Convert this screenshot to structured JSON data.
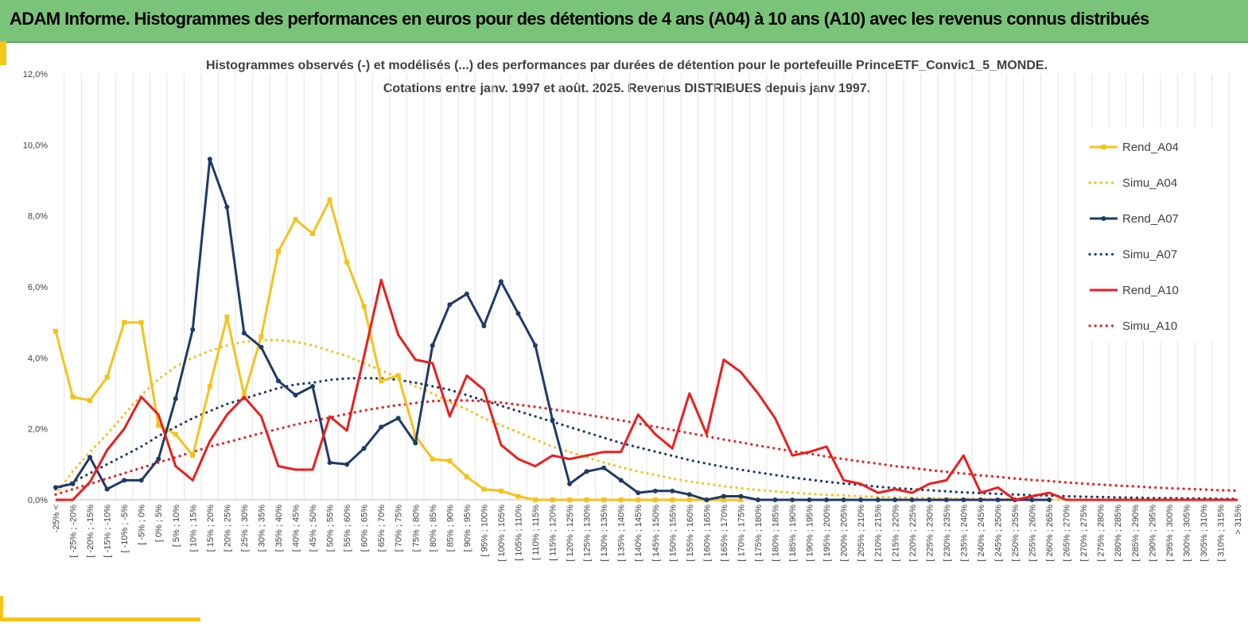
{
  "banner": {
    "title": "ADAM Informe. Histogrammes des performances en euros pour des détentions de 4 ans (A04) à 10 ans (A10) avec les revenus connus distribués"
  },
  "colors": {
    "banner_bg": "#7ac47a",
    "accent": "#f5c518",
    "A04": "#f7c11a",
    "A07": "#1f3a68",
    "A10": "#ee1d1d"
  },
  "chart_data": {
    "type": "line",
    "title_lines": [
      "Histogrammes observés (-) et modélisés (...) des performances par durées de détention pour le portefeuille PrinceETF_Convic1_5_MONDE.",
      "Cotations entre janv. 1997 et août. 2025. Revenus DISTRIBUES depuis janv 1997."
    ],
    "ylim": [
      0,
      12
    ],
    "yticks": [
      "0,0%",
      "2,0%",
      "4,0%",
      "6,0%",
      "8,0%",
      "10,0%",
      "12,0%"
    ],
    "grid": "vertical",
    "legend_position": "right",
    "categories": [
      "-25% <",
      "[ -25% ; -20%",
      "[ -20% ; -15%",
      "[ -15% ; -10%",
      "[ -10% ; -5%",
      "[ -5% ; 0%",
      "[ 0% ; 5%",
      "[ 5% ; 10%",
      "[ 10% ; 15%",
      "[ 15% ; 20%",
      "[ 20% ; 25%",
      "[ 25% ; 30%",
      "[ 30% ; 35%",
      "[ 35% ; 40%",
      "[ 40% ; 45%",
      "[ 45% ; 50%",
      "[ 50% ; 55%",
      "[ 55% ; 60%",
      "[ 60% ; 65%",
      "[ 65% ; 70%",
      "[ 70% ; 75%",
      "[ 75% ; 80%",
      "[ 80% ; 85%",
      "[ 85% ; 90%",
      "[ 90% ; 95%",
      "[ 95% ; 100%",
      "[ 100% ; 105%",
      "[ 105% ; 110%",
      "[ 110% ; 115%",
      "[ 115% ; 120%",
      "[ 120% ; 125%",
      "[ 125% ; 130%",
      "[ 130% ; 135%",
      "[ 135% ; 140%",
      "[ 140% ; 145%",
      "[ 145% ; 150%",
      "[ 150% ; 155%",
      "[ 155% ; 160%",
      "[ 160% ; 165%",
      "[ 165% ; 170%",
      "[ 170% ; 175%",
      "[ 175% ; 180%",
      "[ 180% ; 185%",
      "[ 185% ; 190%",
      "[ 190% ; 195%",
      "[ 195% ; 200%",
      "[ 200% ; 205%",
      "[ 205% ; 210%",
      "[ 210% ; 215%",
      "[ 215% ; 220%",
      "[ 220% ; 225%",
      "[ 225% ; 230%",
      "[ 230% ; 235%",
      "[ 235% ; 240%",
      "[ 240% ; 245%",
      "[ 245% ; 250%",
      "[ 250% ; 255%",
      "[ 255% ; 260%",
      "[ 260% ; 265%",
      "[ 265% ; 270%",
      "[ 270% ; 275%",
      "[ 275% ; 280%",
      "[ 280% ; 285%",
      "[ 285% ; 290%",
      "[ 290% ; 295%",
      "[ 295% ; 300%",
      "[ 300% ; 305%",
      "[ 305% ; 310%",
      "[ 310% ; 315%",
      "> 315%"
    ],
    "series": [
      {
        "name": "Rend_A04",
        "style": "solid",
        "markers": "square",
        "color": "#f7c11a",
        "values": [
          4.75,
          2.9,
          2.8,
          3.45,
          5.0,
          5.0,
          2.1,
          1.85,
          1.25,
          3.2,
          5.15,
          2.95,
          4.6,
          7.0,
          7.9,
          7.5,
          8.45,
          6.7,
          5.45,
          3.35,
          3.5,
          1.8,
          1.15,
          1.1,
          0.65,
          0.3,
          0.25,
          0.1,
          0.0,
          0.0,
          0.0,
          0.0,
          0.0,
          0.0,
          0.0,
          0.0,
          0.0,
          0.0,
          0.0,
          0.0,
          0.0,
          null,
          null,
          null,
          null,
          null,
          null,
          null,
          null,
          null,
          null,
          null,
          null,
          null,
          null,
          null,
          null,
          null,
          null,
          null,
          null,
          null,
          null,
          null,
          null,
          null,
          null,
          null,
          null,
          null
        ]
      },
      {
        "name": "Simu_A04",
        "style": "dotted",
        "color": "#f7c11a",
        "values": [
          0.15,
          0.8,
          1.35,
          1.85,
          2.4,
          2.95,
          3.4,
          3.75,
          4.0,
          4.2,
          4.35,
          4.45,
          4.5,
          4.5,
          4.45,
          4.35,
          4.2,
          4.05,
          3.85,
          3.65,
          3.45,
          3.2,
          3.0,
          2.75,
          2.55,
          2.3,
          2.1,
          1.9,
          1.7,
          1.5,
          1.35,
          1.2,
          1.05,
          0.92,
          0.8,
          0.7,
          0.6,
          0.52,
          0.45,
          0.38,
          0.33,
          0.28,
          0.24,
          0.2,
          0.17,
          0.14,
          0.12,
          0.1,
          0.08,
          0.07,
          0.06,
          0.05,
          0.04,
          0.03,
          0.03,
          0.02,
          0.02,
          0.01,
          0.01,
          0.01,
          0.0,
          0.0,
          0.0,
          0.0,
          0.0,
          0.0,
          0.0,
          0.0,
          0.0,
          0.0
        ]
      },
      {
        "name": "Rend_A07",
        "style": "solid",
        "markers": "circle",
        "color": "#1f3a68",
        "values": [
          0.35,
          0.45,
          1.2,
          0.3,
          0.55,
          0.55,
          1.15,
          2.85,
          4.8,
          9.6,
          8.25,
          4.7,
          4.3,
          3.35,
          2.95,
          3.2,
          1.05,
          1.0,
          1.45,
          2.05,
          2.3,
          1.6,
          4.35,
          5.5,
          5.8,
          4.9,
          6.15,
          5.25,
          4.35,
          2.25,
          0.45,
          0.8,
          0.9,
          0.55,
          0.2,
          0.25,
          0.25,
          0.15,
          0.0,
          0.1,
          0.1,
          0.0,
          0.0,
          0.0,
          0.0,
          0.0,
          0.0,
          0.0,
          0.0,
          0.0,
          0.0,
          0.0,
          0.0,
          0.0,
          0.0,
          0.0,
          0.0,
          0.0,
          0.0,
          null,
          null,
          null,
          null,
          null,
          null,
          null,
          null,
          null,
          null,
          null
        ]
      },
      {
        "name": "Simu_A07",
        "style": "dotted",
        "color": "#1f3a68",
        "values": [
          0.3,
          0.5,
          0.75,
          1.0,
          1.25,
          1.5,
          1.8,
          2.05,
          2.3,
          2.5,
          2.7,
          2.85,
          3.0,
          3.15,
          3.25,
          3.3,
          3.38,
          3.42,
          3.43,
          3.42,
          3.38,
          3.3,
          3.2,
          3.1,
          2.95,
          2.8,
          2.65,
          2.5,
          2.35,
          2.2,
          2.05,
          1.9,
          1.75,
          1.6,
          1.48,
          1.36,
          1.24,
          1.12,
          1.02,
          0.93,
          0.85,
          0.77,
          0.7,
          0.63,
          0.57,
          0.51,
          0.46,
          0.42,
          0.37,
          0.33,
          0.3,
          0.27,
          0.24,
          0.21,
          0.19,
          0.17,
          0.15,
          0.13,
          0.12,
          0.1,
          0.09,
          0.08,
          0.07,
          0.06,
          0.05,
          0.05,
          0.04,
          0.04,
          0.03,
          0.03
        ]
      },
      {
        "name": "Rend_A10",
        "style": "solid",
        "markers": "none",
        "color": "#ee1d1d",
        "values": [
          0.0,
          0.0,
          0.5,
          1.4,
          2.0,
          2.9,
          2.4,
          0.95,
          0.55,
          1.65,
          2.4,
          2.9,
          2.35,
          0.95,
          0.85,
          0.85,
          2.35,
          1.95,
          4.05,
          6.2,
          4.65,
          3.95,
          3.85,
          2.35,
          3.5,
          3.1,
          1.55,
          1.15,
          0.95,
          1.25,
          1.15,
          1.25,
          1.35,
          1.35,
          2.4,
          1.85,
          1.45,
          3.0,
          1.85,
          3.95,
          3.6,
          3.0,
          2.3,
          1.25,
          1.35,
          1.5,
          0.55,
          0.45,
          0.2,
          0.3,
          0.2,
          0.45,
          0.55,
          1.25,
          0.2,
          0.35,
          0.0,
          0.1,
          0.2,
          0.0,
          0.0,
          0.0,
          0.0,
          0.0,
          0.0,
          0.0,
          0.0,
          0.0,
          0.0,
          0.0
        ]
      },
      {
        "name": "Simu_A10",
        "style": "dotted",
        "color": "#ee1d1d",
        "values": [
          0.15,
          0.3,
          0.45,
          0.6,
          0.75,
          0.9,
          1.05,
          1.2,
          1.35,
          1.5,
          1.62,
          1.75,
          1.88,
          2.0,
          2.12,
          2.22,
          2.32,
          2.42,
          2.52,
          2.6,
          2.67,
          2.73,
          2.78,
          2.8,
          2.8,
          2.78,
          2.74,
          2.68,
          2.62,
          2.55,
          2.48,
          2.4,
          2.32,
          2.24,
          2.15,
          2.06,
          1.97,
          1.88,
          1.79,
          1.7,
          1.62,
          1.53,
          1.45,
          1.37,
          1.3,
          1.22,
          1.15,
          1.08,
          1.02,
          0.95,
          0.9,
          0.84,
          0.79,
          0.74,
          0.69,
          0.65,
          0.6,
          0.56,
          0.53,
          0.49,
          0.46,
          0.43,
          0.4,
          0.38,
          0.35,
          0.33,
          0.31,
          0.29,
          0.27,
          0.26
        ]
      }
    ]
  }
}
